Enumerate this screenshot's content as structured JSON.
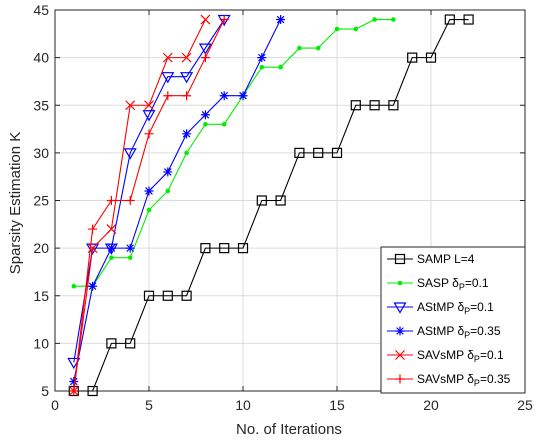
{
  "chart_data": {
    "type": "line",
    "title": "",
    "xlabel": "No. of Iterations",
    "ylabel": "Sparsity Estimation K",
    "xlim": [
      0,
      25
    ],
    "ylim": [
      5,
      45
    ],
    "xticks": [
      0,
      5,
      10,
      15,
      20,
      25
    ],
    "yticks": [
      5,
      10,
      15,
      20,
      25,
      30,
      35,
      40,
      45
    ],
    "grid": true,
    "legend_position": "bottom-right",
    "series": [
      {
        "name": "SAMP L=4",
        "legend": {
          "base": "SAMP L=4",
          "sub": "",
          "suffix": ""
        },
        "color": "#000000",
        "marker": "square",
        "x": [
          1,
          2,
          3,
          4,
          5,
          6,
          7,
          8,
          9,
          10,
          11,
          12,
          13,
          14,
          15,
          16,
          17,
          18,
          19,
          20,
          21,
          22
        ],
        "y": [
          5,
          5,
          10,
          10,
          15,
          15,
          15,
          20,
          20,
          20,
          25,
          25,
          30,
          30,
          30,
          35,
          35,
          35,
          40,
          40,
          44,
          44
        ]
      },
      {
        "name": "SASP δP=0.1",
        "legend": {
          "base": "SASP δ",
          "sub": "P",
          "suffix": "=0.1"
        },
        "color": "#00ee00",
        "marker": "dot",
        "x": [
          1,
          2,
          3,
          4,
          5,
          6,
          7,
          8,
          9,
          10,
          11,
          12,
          13,
          14,
          15,
          16,
          17,
          18
        ],
        "y": [
          16,
          16,
          19,
          19,
          24,
          26,
          30,
          33,
          33,
          36,
          39,
          39,
          41,
          41,
          43,
          43,
          44,
          44
        ]
      },
      {
        "name": "AStMP δP=0.1",
        "legend": {
          "base": "AStMP δ",
          "sub": "P",
          "suffix": "=0.1"
        },
        "color": "#0000ff",
        "marker": "triangle-down",
        "x": [
          1,
          2,
          3,
          4,
          5,
          6,
          7,
          8,
          9
        ],
        "y": [
          8,
          20,
          20,
          30,
          34,
          38,
          38,
          41,
          44
        ]
      },
      {
        "name": "AStMP δP=0.35",
        "legend": {
          "base": "AStMP δ",
          "sub": "P",
          "suffix": "=0.35"
        },
        "color": "#0000ff",
        "marker": "asterisk",
        "x": [
          1,
          2,
          3,
          4,
          5,
          6,
          7,
          8,
          9,
          10,
          11,
          12
        ],
        "y": [
          6,
          16,
          20,
          20,
          26,
          28,
          32,
          34,
          36,
          36,
          40,
          44
        ]
      },
      {
        "name": "SAVsMP δP=0.1",
        "legend": {
          "base": "SAVsMP δ",
          "sub": "P",
          "suffix": "=0.1"
        },
        "color": "#ff0000",
        "marker": "x",
        "x": [
          1,
          2,
          3,
          4,
          5,
          6,
          7,
          8
        ],
        "y": [
          5,
          20,
          22,
          35,
          35,
          40,
          40,
          44
        ]
      },
      {
        "name": "SAVsMP δP=0.35",
        "legend": {
          "base": "SAVsMP δ",
          "sub": "P",
          "suffix": "=0.35"
        },
        "color": "#ff0000",
        "marker": "plus",
        "x": [
          1,
          2,
          3,
          4,
          5,
          6,
          7,
          8,
          9
        ],
        "y": [
          5,
          22,
          25,
          25,
          32,
          36,
          36,
          40,
          44
        ]
      }
    ]
  }
}
